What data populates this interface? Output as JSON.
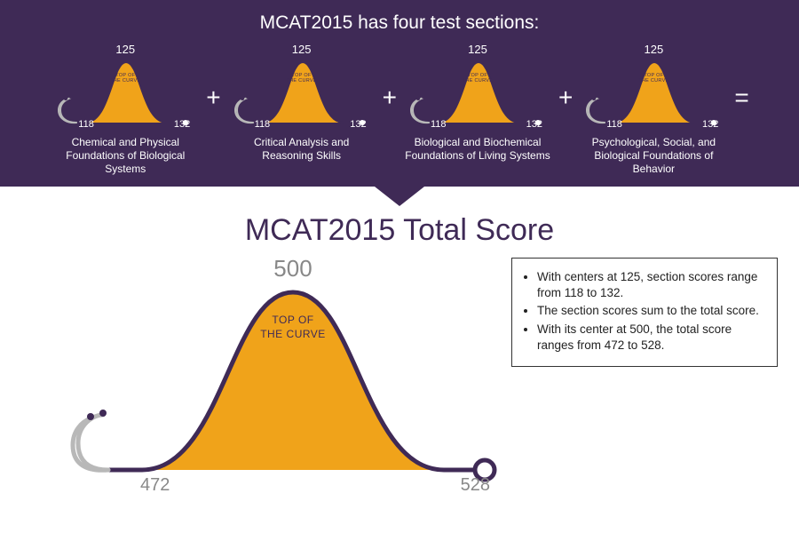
{
  "colors": {
    "band_bg": "#3f2a56",
    "curve_fill": "#f0a31a",
    "curve_stroke": "#3f2a56",
    "white": "#ffffff",
    "grey_text": "#888888",
    "steth_grey": "#b8b8b8"
  },
  "header": {
    "title": "MCAT2015 has four test sections:"
  },
  "section_curve": {
    "type": "bell-curve",
    "center": 125,
    "min": 118,
    "max": 132,
    "top_label": "TOP OF\nTHE CURVE",
    "fill_color": "#f0a31a",
    "stroke_color": "#3f2a56",
    "stroke_width": 2
  },
  "sections": [
    {
      "name": "Chemical and Physical Foundations of Biological Systems"
    },
    {
      "name": "Critical Analysis and Reasoning Skills"
    },
    {
      "name": "Biological and Biochemical Foundations of Living Systems"
    },
    {
      "name": "Psychological, Social, and Biological Foundations of Behavior"
    }
  ],
  "operators": [
    "+",
    "+",
    "+",
    "="
  ],
  "total": {
    "title": "MCAT2015 Total Score",
    "curve": {
      "type": "bell-curve",
      "center": 500,
      "min": 472,
      "max": 528,
      "top_label": "TOP OF\nTHE CURVE",
      "fill_color": "#f0a31a",
      "stroke_color": "#3f2a56",
      "stroke_width": 5
    }
  },
  "info_box": {
    "items": [
      "With centers at 125, section scores range from 118 to 132.",
      "The section scores sum to the total score.",
      "With its center at 500, the total score ranges from 472 to 528."
    ]
  },
  "typography": {
    "top_title_fontsize": 21,
    "section_name_fontsize": 12,
    "total_title_fontsize": 34,
    "info_fontsize": 13.5
  }
}
